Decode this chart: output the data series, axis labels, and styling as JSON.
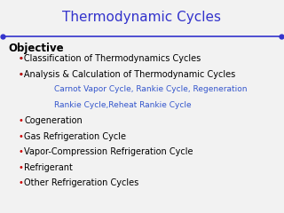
{
  "title": "Thermodynamic Cycles",
  "title_color": "#3333cc",
  "title_fontsize": 11,
  "line_color": "#3333cc",
  "background_color": "#f2f2f2",
  "objective_label": "Objective",
  "objective_fontsize": 8.5,
  "items": [
    {
      "text": "Classification of Thermodynamics Cycles",
      "indent": 1,
      "color": "#000000",
      "bullet": "•",
      "bullet_color": "#cc0000",
      "tight_bullet": true,
      "fontsize": 7.0
    },
    {
      "text": "Analysis & Calculation of Thermodynamic Cycles",
      "indent": 1,
      "color": "#000000",
      "bullet": "•",
      "bullet_color": "#cc0000",
      "tight_bullet": true,
      "fontsize": 7.0
    },
    {
      "text": "Carnot Vapor Cycle, Rankie Cycle, Regeneration",
      "indent": 2,
      "color": "#3355cc",
      "bullet": "",
      "bullet_color": "",
      "tight_bullet": false,
      "fontsize": 6.5
    },
    {
      "text": "Rankie Cycle,Reheat Rankie Cycle",
      "indent": 2,
      "color": "#3355cc",
      "bullet": "",
      "bullet_color": "",
      "tight_bullet": false,
      "fontsize": 6.5
    },
    {
      "text": "Cogeneration",
      "indent": 1,
      "color": "#000000",
      "bullet": "•",
      "bullet_color": "#cc0000",
      "tight_bullet": false,
      "fontsize": 7.0
    },
    {
      "text": "Gas Refrigeration Cycle",
      "indent": 1,
      "color": "#000000",
      "bullet": "•",
      "bullet_color": "#cc0000",
      "tight_bullet": false,
      "fontsize": 7.0
    },
    {
      "text": "Vapor-Compression Refrigeration Cycle",
      "indent": 1,
      "color": "#000000",
      "bullet": "•",
      "bullet_color": "#cc0000",
      "tight_bullet": false,
      "fontsize": 7.0
    },
    {
      "text": "Refrigerant",
      "indent": 1,
      "color": "#000000",
      "bullet": "•",
      "bullet_color": "#cc0000",
      "tight_bullet": false,
      "fontsize": 7.0
    },
    {
      "text": "Other Refrigeration Cycles",
      "indent": 1,
      "color": "#000000",
      "bullet": "•",
      "bullet_color": "#cc0000",
      "tight_bullet": false,
      "fontsize": 7.0
    }
  ],
  "fig_width": 3.2,
  "fig_height": 2.4,
  "dpi": 100
}
